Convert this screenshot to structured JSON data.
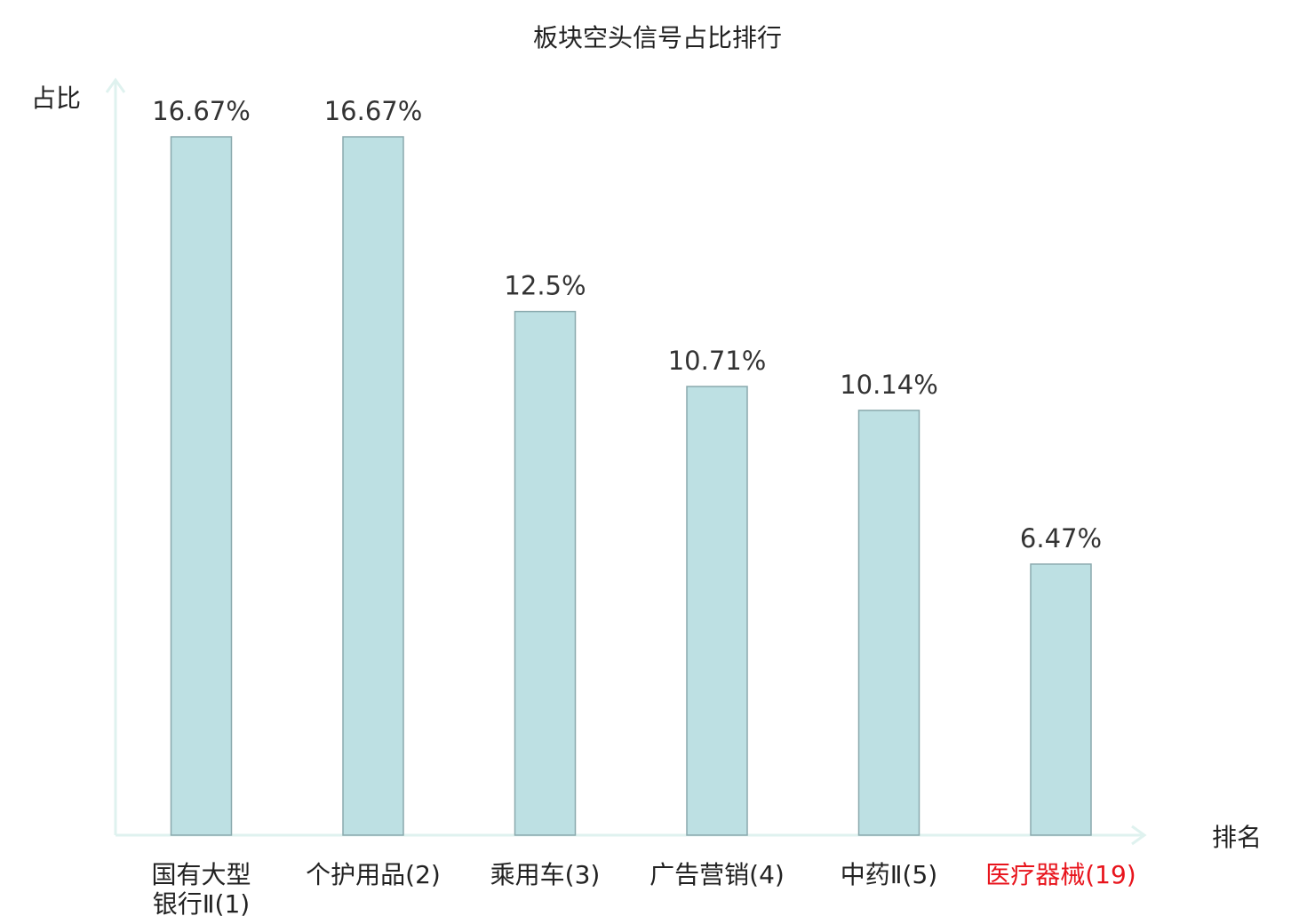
{
  "chart_data": {
    "type": "bar",
    "title": "板块空头信号占比排行",
    "ylabel": "占比",
    "xlabel": "排名",
    "categories": [
      [
        "国有大型",
        "银行Ⅱ(1)"
      ],
      [
        "个护用品(2)"
      ],
      [
        "乘用车(3)"
      ],
      [
        "广告营销(4)"
      ],
      [
        "中药Ⅱ(5)"
      ],
      [
        "医疗器械(19)"
      ]
    ],
    "values": [
      16.67,
      16.67,
      12.5,
      10.71,
      10.14,
      6.47
    ],
    "value_labels": [
      "16.67%",
      "16.67%",
      "12.5%",
      "10.71%",
      "10.14%",
      "6.47%"
    ],
    "highlight_index": 5,
    "ylim": [
      0,
      16.67
    ],
    "grid": false,
    "colors": {
      "bar_fill": "#bde0e3",
      "bar_stroke": "#8aa9ad",
      "axis": "#dff2ef",
      "text": "#222222",
      "value_text": "#333333",
      "highlight": "#e8141c"
    }
  }
}
